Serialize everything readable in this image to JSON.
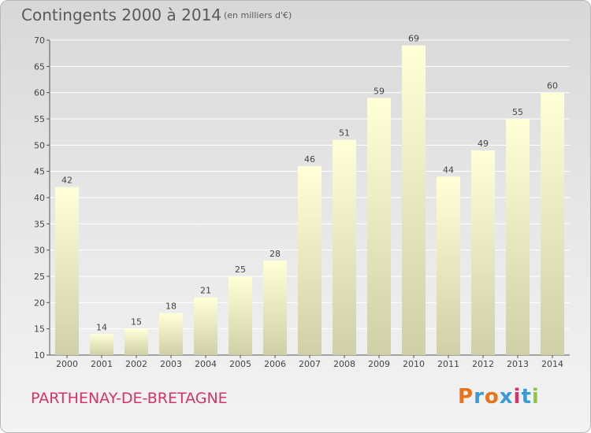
{
  "header": {
    "title": "Contingents 2000 à 2014",
    "subtitle": "(en milliers d'€)"
  },
  "footer": {
    "commune": "PARTHENAY-DE-BRETAGNE",
    "logo_text": "Proxiti",
    "logo_colors": [
      "#e8731a",
      "#3a9bd8",
      "#e8731a",
      "#3a9bd8",
      "#d6336c",
      "#3a9bd8",
      "#8dc63f"
    ]
  },
  "colors": {
    "bar_top": "#ffffd8",
    "bar_bottom": "#d0d0a8",
    "grid": "#ffffff",
    "axis": "#555555"
  },
  "chart_data": {
    "type": "bar",
    "categories": [
      "2000",
      "2001",
      "2002",
      "2003",
      "2004",
      "2005",
      "2006",
      "2007",
      "2008",
      "2009",
      "2010",
      "2011",
      "2012",
      "2013",
      "2014"
    ],
    "values": [
      42,
      14,
      15,
      18,
      21,
      25,
      28,
      46,
      51,
      59,
      69,
      44,
      49,
      55,
      60
    ],
    "ylim": [
      10,
      70
    ],
    "yticks": [
      10,
      15,
      20,
      25,
      30,
      35,
      40,
      45,
      50,
      55,
      60,
      65,
      70
    ],
    "grid": true,
    "xlabel": "",
    "ylabel": ""
  }
}
